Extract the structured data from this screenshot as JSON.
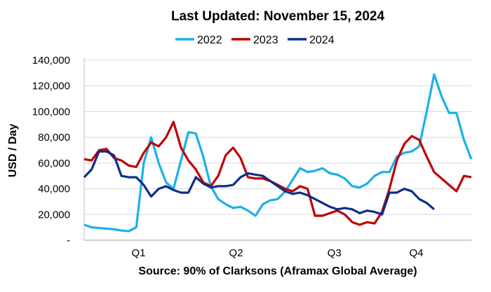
{
  "chart_data": {
    "type": "line",
    "title": "Last Updated: November 15, 2024",
    "xlabel": "Source: 90% of Clarksons (Aframax Global Average)",
    "ylabel": "USD / Day",
    "ylim": [
      0,
      140000
    ],
    "yticks": [
      0,
      20000,
      40000,
      60000,
      80000,
      100000,
      120000,
      140000
    ],
    "ytick_labels": [
      "-",
      "20,000",
      "40,000",
      "60,000",
      "80,000",
      "100,000",
      "120,000",
      "140,000"
    ],
    "x_unit": "week",
    "x_count": 53,
    "quarter_labels": [
      {
        "label": "Q1",
        "week": 7.3
      },
      {
        "label": "Q2",
        "week": 20.4
      },
      {
        "label": "Q3",
        "week": 33.6
      },
      {
        "label": "Q4",
        "week": 44.6
      }
    ],
    "grid": "horizontal",
    "legend": "top-center",
    "series": [
      {
        "name": "2022",
        "color": "#1ab0ea",
        "values": [
          12000,
          10000,
          9500,
          9000,
          8500,
          7500,
          7000,
          10000,
          60000,
          80000,
          60000,
          45000,
          40000,
          62000,
          84000,
          83000,
          65000,
          42000,
          32000,
          28000,
          25000,
          26000,
          23000,
          19000,
          28000,
          31000,
          32000,
          38000,
          47000,
          56000,
          53000,
          54000,
          56000,
          52000,
          51000,
          48000,
          42000,
          41000,
          44000,
          50000,
          53000,
          53000,
          65000,
          68000,
          69000,
          73000,
          100000,
          129000,
          112000,
          99000,
          99000,
          78000,
          63000
        ]
      },
      {
        "name": "2023",
        "color": "#c00000",
        "values": [
          63000,
          62000,
          70000,
          71000,
          64000,
          62000,
          58000,
          57000,
          68000,
          76000,
          73000,
          80000,
          92000,
          72000,
          62000,
          55000,
          45000,
          42000,
          50000,
          66000,
          72000,
          64000,
          49000,
          48000,
          48000,
          46000,
          43000,
          40000,
          38000,
          42000,
          40000,
          19000,
          19000,
          21000,
          23000,
          20000,
          14000,
          12000,
          14000,
          13000,
          22000,
          40000,
          62000,
          75000,
          81000,
          78000,
          65000,
          53000,
          48000,
          43000,
          38000,
          50000,
          49000
        ]
      },
      {
        "name": "2024",
        "color": "#0d2f87",
        "values": [
          49000,
          55000,
          69000,
          69000,
          66000,
          50000,
          49000,
          49000,
          43000,
          34000,
          40000,
          42000,
          39000,
          37000,
          37000,
          49000,
          44000,
          41000,
          42000,
          42000,
          43000,
          49000,
          52000,
          51000,
          50000,
          46000,
          42000,
          38000,
          36000,
          37000,
          35000,
          32000,
          29000,
          26000,
          24000,
          25000,
          24000,
          21000,
          23000,
          22000,
          20000,
          37000,
          37000,
          40000,
          38000,
          32000,
          29000,
          24000
        ]
      }
    ]
  }
}
